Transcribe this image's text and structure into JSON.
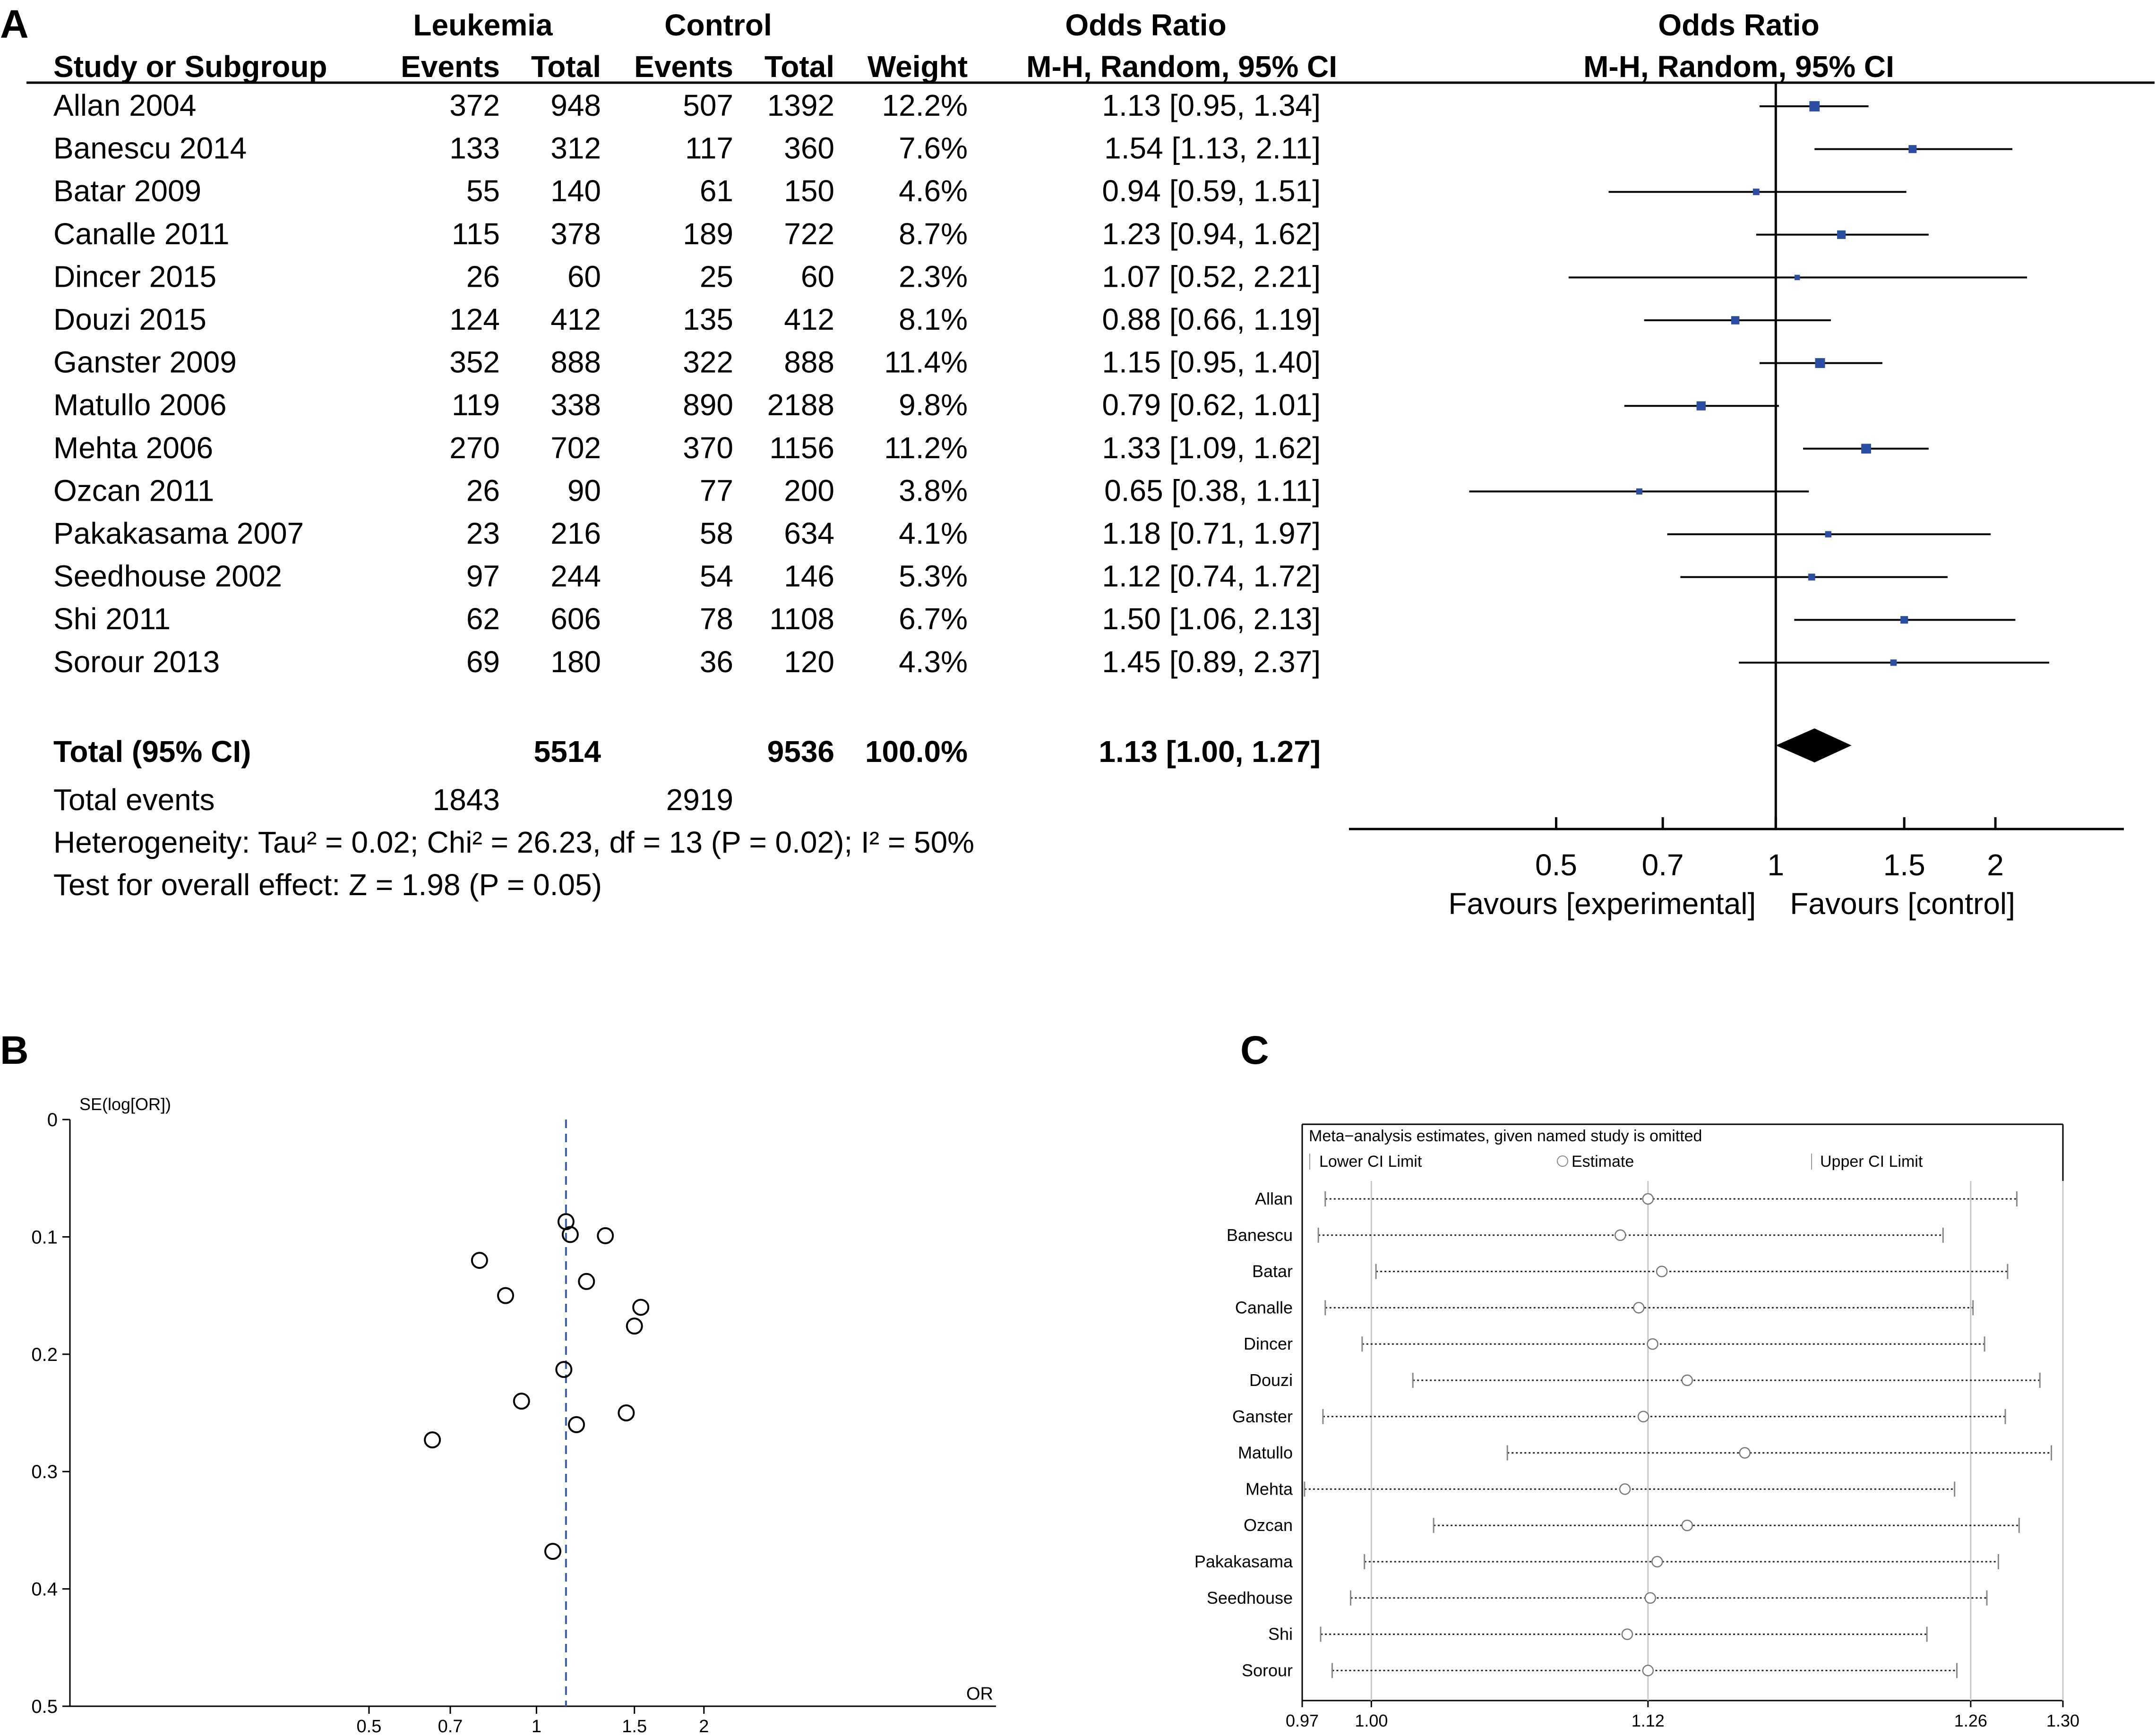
{
  "panels": {
    "a": "A",
    "b": "B",
    "c": "C"
  },
  "colors": {
    "marker": "#2b4ea2",
    "ink": "#000000",
    "dash": "#3a5fa8",
    "grid": "#c8c8c8"
  },
  "chart_data": [
    {
      "type": "table",
      "panel": "A",
      "group_headers": {
        "leukemia": "Leukemia",
        "control": "Control",
        "or_col": "Odds Ratio",
        "or_plot": "Odds Ratio"
      },
      "columns": {
        "study": "Study or Subgroup",
        "l_events": "Events",
        "l_total": "Total",
        "c_events": "Events",
        "c_total": "Total",
        "weight": "Weight",
        "method": "M-H, Random, 95% CI",
        "method_plot": "M-H, Random, 95% CI"
      },
      "studies": [
        {
          "name": "Allan 2004",
          "le": "372",
          "lt": "948",
          "ce": "507",
          "ct": "1392",
          "w": "12.2%",
          "ci": "1.13 [0.95, 1.34]",
          "or": 1.13,
          "lo": 0.95,
          "hi": 1.34,
          "wn": 12.2
        },
        {
          "name": "Banescu 2014",
          "le": "133",
          "lt": "312",
          "ce": "117",
          "ct": "360",
          "w": "7.6%",
          "ci": "1.54 [1.13, 2.11]",
          "or": 1.54,
          "lo": 1.13,
          "hi": 2.11,
          "wn": 7.6
        },
        {
          "name": "Batar 2009",
          "le": "55",
          "lt": "140",
          "ce": "61",
          "ct": "150",
          "w": "4.6%",
          "ci": "0.94 [0.59, 1.51]",
          "or": 0.94,
          "lo": 0.59,
          "hi": 1.51,
          "wn": 4.6
        },
        {
          "name": "Canalle 2011",
          "le": "115",
          "lt": "378",
          "ce": "189",
          "ct": "722",
          "w": "8.7%",
          "ci": "1.23 [0.94, 1.62]",
          "or": 1.23,
          "lo": 0.94,
          "hi": 1.62,
          "wn": 8.7
        },
        {
          "name": "Dincer 2015",
          "le": "26",
          "lt": "60",
          "ce": "25",
          "ct": "60",
          "w": "2.3%",
          "ci": "1.07 [0.52, 2.21]",
          "or": 1.07,
          "lo": 0.52,
          "hi": 2.21,
          "wn": 2.3
        },
        {
          "name": "Douzi 2015",
          "le": "124",
          "lt": "412",
          "ce": "135",
          "ct": "412",
          "w": "8.1%",
          "ci": "0.88 [0.66, 1.19]",
          "or": 0.88,
          "lo": 0.66,
          "hi": 1.19,
          "wn": 8.1
        },
        {
          "name": "Ganster 2009",
          "le": "352",
          "lt": "888",
          "ce": "322",
          "ct": "888",
          "w": "11.4%",
          "ci": "1.15 [0.95, 1.40]",
          "or": 1.15,
          "lo": 0.95,
          "hi": 1.4,
          "wn": 11.4
        },
        {
          "name": "Matullo 2006",
          "le": "119",
          "lt": "338",
          "ce": "890",
          "ct": "2188",
          "w": "9.8%",
          "ci": "0.79 [0.62, 1.01]",
          "or": 0.79,
          "lo": 0.62,
          "hi": 1.01,
          "wn": 9.8
        },
        {
          "name": "Mehta 2006",
          "le": "270",
          "lt": "702",
          "ce": "370",
          "ct": "1156",
          "w": "11.2%",
          "ci": "1.33 [1.09, 1.62]",
          "or": 1.33,
          "lo": 1.09,
          "hi": 1.62,
          "wn": 11.2
        },
        {
          "name": "Ozcan 2011",
          "le": "26",
          "lt": "90",
          "ce": "77",
          "ct": "200",
          "w": "3.8%",
          "ci": "0.65 [0.38, 1.11]",
          "or": 0.65,
          "lo": 0.38,
          "hi": 1.11,
          "wn": 3.8
        },
        {
          "name": "Pakakasama 2007",
          "le": "23",
          "lt": "216",
          "ce": "58",
          "ct": "634",
          "w": "4.1%",
          "ci": "1.18 [0.71, 1.97]",
          "or": 1.18,
          "lo": 0.71,
          "hi": 1.97,
          "wn": 4.1
        },
        {
          "name": "Seedhouse 2002",
          "le": "97",
          "lt": "244",
          "ce": "54",
          "ct": "146",
          "w": "5.3%",
          "ci": "1.12 [0.74, 1.72]",
          "or": 1.12,
          "lo": 0.74,
          "hi": 1.72,
          "wn": 5.3
        },
        {
          "name": "Shi 2011",
          "le": "62",
          "lt": "606",
          "ce": "78",
          "ct": "1108",
          "w": "6.7%",
          "ci": "1.50 [1.06, 2.13]",
          "or": 1.5,
          "lo": 1.06,
          "hi": 2.13,
          "wn": 6.7
        },
        {
          "name": "Sorour 2013",
          "le": "69",
          "lt": "180",
          "ce": "36",
          "ct": "120",
          "w": "4.3%",
          "ci": "1.45 [0.89, 2.37]",
          "or": 1.45,
          "lo": 0.89,
          "hi": 2.37,
          "wn": 4.3
        }
      ],
      "total": {
        "label": "Total (95% CI)",
        "lt": "5514",
        "ct": "9536",
        "w": "100.0%",
        "ci": "1.13 [1.00, 1.27]",
        "or": 1.13,
        "lo": 1.0,
        "hi": 1.27
      },
      "total_events": {
        "label": "Total events",
        "le": "1843",
        "ce": "2919"
      },
      "heterogeneity": "Heterogeneity: Tau² = 0.02; Chi² = 26.23, df = 13 (P = 0.02); I² = 50%",
      "overall_effect": "Test for overall effect: Z = 1.98 (P = 0.05)",
      "axis": {
        "scale": "log",
        "xlim": [
          0.26,
          3.0
        ],
        "ticks": [
          0.5,
          0.7,
          1,
          1.5,
          2
        ],
        "tick_labels": [
          "0.5",
          "0.7",
          "1",
          "1.5",
          "2"
        ]
      },
      "favours_left": "Favours [experimental]",
      "favours_right": "Favours [control]"
    },
    {
      "type": "scatter",
      "panel": "B",
      "ylabel": "SE(log[OR])",
      "xlabel": "OR",
      "x_scale": "log",
      "xlim": [
        0.145,
        6.7
      ],
      "ylim": [
        0,
        0.5
      ],
      "y_inverted": true,
      "y_ticks": [
        0,
        0.1,
        0.2,
        0.3,
        0.4,
        0.5
      ],
      "y_tick_labels": [
        "0",
        "0.1",
        "0.2",
        "0.3",
        "0.4",
        "0.5"
      ],
      "x_ticks": [
        0.5,
        0.7,
        1,
        1.5,
        2
      ],
      "x_tick_labels": [
        "0.5",
        "0.7",
        "1",
        "1.5",
        "2"
      ],
      "reference_or": 1.13,
      "points": [
        {
          "or": 1.13,
          "se": 0.087
        },
        {
          "or": 1.15,
          "se": 0.098
        },
        {
          "or": 1.33,
          "se": 0.099
        },
        {
          "or": 0.79,
          "se": 0.12
        },
        {
          "or": 1.23,
          "se": 0.138
        },
        {
          "or": 0.88,
          "se": 0.15
        },
        {
          "or": 1.54,
          "se": 0.16
        },
        {
          "or": 1.5,
          "se": 0.176
        },
        {
          "or": 1.12,
          "se": 0.213
        },
        {
          "or": 0.94,
          "se": 0.24
        },
        {
          "or": 1.45,
          "se": 0.25
        },
        {
          "or": 1.18,
          "se": 0.26
        },
        {
          "or": 0.65,
          "se": 0.273
        },
        {
          "or": 1.07,
          "se": 0.368
        }
      ]
    },
    {
      "type": "scatter",
      "panel": "C",
      "title": "Meta−analysis estimates, given named study is omitted",
      "legend": {
        "lower": "Lower CI Limit",
        "estimate": "Estimate",
        "upper": "Upper CI Limit"
      },
      "xlim": [
        0.97,
        1.3
      ],
      "x_ticks": [
        0.97,
        1.0,
        1.12,
        1.26,
        1.3
      ],
      "x_tick_labels": [
        "0.97",
        "1.00",
        "1.12",
        "1.26",
        "1.30"
      ],
      "ref_lines": [
        1.0,
        1.12,
        1.26,
        1.3
      ],
      "studies": [
        {
          "name": "Allan",
          "lo": 0.98,
          "est": 1.12,
          "hi": 1.28
        },
        {
          "name": "Banescu",
          "lo": 0.977,
          "est": 1.108,
          "hi": 1.248
        },
        {
          "name": "Batar",
          "lo": 1.002,
          "est": 1.126,
          "hi": 1.276
        },
        {
          "name": "Canalle",
          "lo": 0.98,
          "est": 1.116,
          "hi": 1.261
        },
        {
          "name": "Dincer",
          "lo": 0.996,
          "est": 1.122,
          "hi": 1.266
        },
        {
          "name": "Douzi",
          "lo": 1.018,
          "est": 1.137,
          "hi": 1.29
        },
        {
          "name": "Ganster",
          "lo": 0.979,
          "est": 1.118,
          "hi": 1.275
        },
        {
          "name": "Matullo",
          "lo": 1.059,
          "est": 1.162,
          "hi": 1.295
        },
        {
          "name": "Mehta",
          "lo": 0.971,
          "est": 1.11,
          "hi": 1.253
        },
        {
          "name": "Ozcan",
          "lo": 1.027,
          "est": 1.137,
          "hi": 1.281
        },
        {
          "name": "Pakakasama",
          "lo": 0.997,
          "est": 1.124,
          "hi": 1.272
        },
        {
          "name": "Seedhouse",
          "lo": 0.991,
          "est": 1.121,
          "hi": 1.267
        },
        {
          "name": "Shi",
          "lo": 0.978,
          "est": 1.111,
          "hi": 1.241
        },
        {
          "name": "Sorour",
          "lo": 0.983,
          "est": 1.12,
          "hi": 1.254
        }
      ]
    }
  ]
}
